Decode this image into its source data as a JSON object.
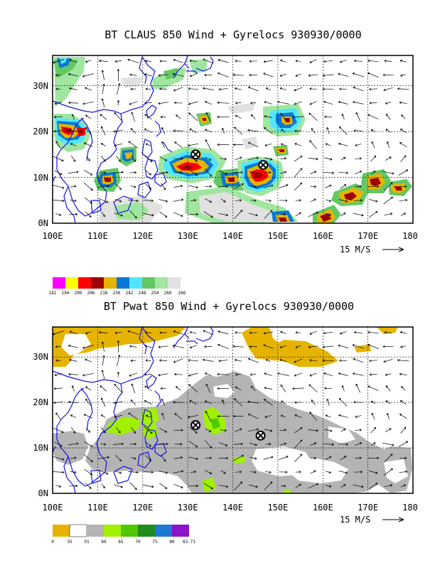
{
  "panels": [
    {
      "id": "claus",
      "title": "BT CLAUS 850 Wind + Gyrelocs 930930/0000",
      "lon_ticks": [
        "100E",
        "110E",
        "120E",
        "130E",
        "140E",
        "150E",
        "160E",
        "170E",
        "180"
      ],
      "lat_ticks": [
        "0N",
        "10N",
        "20N",
        "30N"
      ],
      "scale_label": "15 M/S",
      "colorbar": {
        "labels": [
          "181",
          "194",
          "200",
          "206",
          "218",
          "230",
          "242",
          "248",
          "254",
          "260",
          "266"
        ],
        "colors": [
          "#ff00ff",
          "#ffff00",
          "#ff0000",
          "#a00000",
          "#e6b400",
          "#0a78d2",
          "#50e6ff",
          "#64c864",
          "#a0e6a0",
          "#e1e1e1"
        ]
      },
      "gyres": [
        {
          "lon": 131.5,
          "lat": 15.0
        },
        {
          "lon": 146.5,
          "lat": 12.7
        }
      ]
    },
    {
      "id": "pwat",
      "title": "BT Pwat 850 Wind + Gyrelocs 930930/0000",
      "lon_ticks": [
        "100E",
        "110E",
        "120E",
        "130E",
        "140E",
        "150E",
        "160E",
        "170E",
        "180"
      ],
      "lat_ticks": [
        "0N",
        "10N",
        "20N",
        "30N"
      ],
      "scale_label": "15 M/S",
      "colorbar": {
        "labels": [
          "0",
          "35",
          "55",
          "60",
          "65",
          "70",
          "75",
          "80",
          "83.71"
        ],
        "colors": [
          "#e6b400",
          "#ffffff",
          "#b4b4b4",
          "#a0f000",
          "#50c800",
          "#1e8c1e",
          "#1e78d2",
          "#8c14c8"
        ]
      },
      "gyres": [
        {
          "lon": 131.5,
          "lat": 15.0
        },
        {
          "lon": 146.5,
          "lat": 12.7
        }
      ]
    }
  ]
}
